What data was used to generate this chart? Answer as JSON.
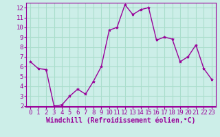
{
  "x": [
    0,
    1,
    2,
    3,
    4,
    5,
    6,
    7,
    8,
    9,
    10,
    11,
    12,
    13,
    14,
    15,
    16,
    17,
    18,
    19,
    20,
    21,
    22,
    23
  ],
  "y": [
    6.5,
    5.8,
    5.7,
    2.0,
    2.1,
    3.0,
    3.7,
    3.2,
    4.5,
    6.0,
    9.7,
    10.0,
    12.3,
    11.3,
    11.8,
    12.0,
    8.7,
    9.0,
    8.8,
    6.5,
    7.0,
    8.2,
    5.8,
    4.7
  ],
  "line_color": "#990099",
  "marker": "*",
  "marker_size": 3,
  "background_color": "#cceee8",
  "grid_color": "#aaddcc",
  "xlabel": "Windchill (Refroidissement éolien,°C)",
  "xlabel_color": "#990099",
  "tick_color": "#990099",
  "label_color": "#990099",
  "ylim": [
    2,
    12.5
  ],
  "xlim": [
    -0.5,
    23.5
  ],
  "yticks": [
    2,
    3,
    4,
    5,
    6,
    7,
    8,
    9,
    10,
    11,
    12
  ],
  "xticks": [
    0,
    1,
    2,
    3,
    4,
    5,
    6,
    7,
    8,
    9,
    10,
    11,
    12,
    13,
    14,
    15,
    16,
    17,
    18,
    19,
    20,
    21,
    22,
    23
  ],
  "line_width": 1.0,
  "spine_color": "#990099",
  "xlabel_fontsize": 7.0,
  "tick_fontsize": 6.5
}
